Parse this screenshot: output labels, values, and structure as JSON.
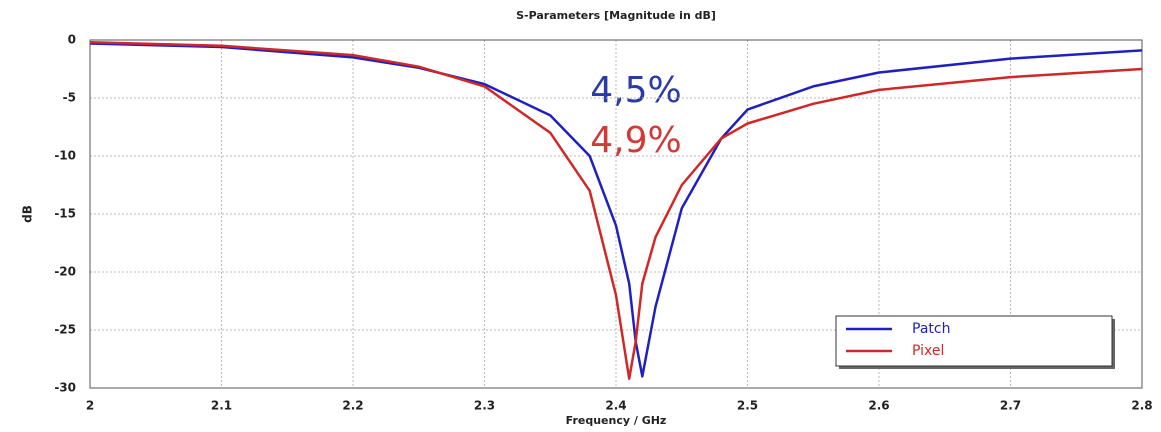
{
  "chart_data": {
    "type": "line",
    "title": "S-Parameters [Magnitude in dB]",
    "x_label": "Frequency / GHz",
    "y_label": "dB",
    "x": [
      2,
      2.1,
      2.2,
      2.25,
      2.3,
      2.35,
      2.38,
      2.4,
      2.41,
      2.415,
      2.42,
      2.43,
      2.45,
      2.48,
      2.5,
      2.55,
      2.6,
      2.7,
      2.8
    ],
    "series": [
      {
        "name": "Patch",
        "color": "#2020c0",
        "values": [
          -0.3,
          -0.6,
          -1.5,
          -2.4,
          -3.8,
          -6.5,
          -10,
          -16,
          -21,
          -26,
          -29,
          -23,
          -14.5,
          -8.5,
          -6,
          -4,
          -2.8,
          -1.6,
          -0.9
        ]
      },
      {
        "name": "Pixel",
        "color": "#d02828",
        "values": [
          -0.2,
          -0.5,
          -1.3,
          -2.3,
          -4,
          -8,
          -13,
          -22,
          -29.2,
          -26,
          -21,
          -17,
          -12.5,
          -8.5,
          -7.2,
          -5.5,
          -4.3,
          -3.2,
          -2.5
        ]
      }
    ],
    "annotations": [
      {
        "text": "4,5%",
        "color": "#2a3aa8"
      },
      {
        "text": "4,9%",
        "color": "#d23a3a"
      }
    ],
    "xlim": [
      2,
      2.8
    ],
    "xticks": [
      2,
      2.1,
      2.2,
      2.3,
      2.4,
      2.5,
      2.6,
      2.7,
      2.8
    ],
    "ylim": [
      -30,
      0
    ],
    "yticks": [
      0,
      -5,
      -10,
      -15,
      -20,
      -25,
      -30
    ],
    "grid": true,
    "legend": "lower right"
  }
}
